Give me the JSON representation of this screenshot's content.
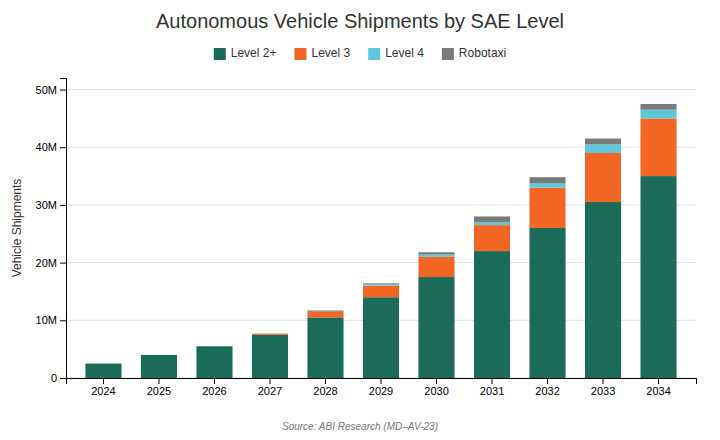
{
  "chart_data": {
    "type": "bar",
    "stacked": true,
    "title": "Autonomous Vehicle Shipments by SAE Level",
    "ylabel": "Vehicle Shipments",
    "annotations": [
      "Source: ABI Research (MD–AV-23)"
    ],
    "categories": [
      "2024",
      "2025",
      "2026",
      "2027",
      "2028",
      "2029",
      "2030",
      "2031",
      "2032",
      "2033",
      "2034"
    ],
    "series": [
      {
        "name": "Level 2+",
        "color": "#1a6b5a",
        "values": [
          2.5,
          4.0,
          5.5,
          7.5,
          10.5,
          14.0,
          17.5,
          22.0,
          26.0,
          30.5,
          35.0
        ]
      },
      {
        "name": "Level 3",
        "color": "#f26522",
        "values": [
          0.0,
          0.0,
          0.0,
          0.2,
          1.0,
          2.0,
          3.5,
          4.5,
          7.0,
          8.5,
          10.0
        ]
      },
      {
        "name": "Level 4",
        "color": "#5ec8d8",
        "values": [
          0.0,
          0.0,
          0.0,
          0.0,
          0.0,
          0.2,
          0.4,
          0.5,
          0.8,
          1.5,
          1.5
        ]
      },
      {
        "name": "Robotaxi",
        "color": "#7a7a7a",
        "values": [
          0.0,
          0.0,
          0.0,
          0.0,
          0.2,
          0.2,
          0.4,
          1.0,
          1.0,
          1.0,
          1.0
        ]
      }
    ],
    "ylim": [
      0,
      52
    ],
    "yticks": [
      0,
      {
        "value": 10,
        "label": "10M"
      },
      {
        "value": 20,
        "label": "20M"
      },
      {
        "value": 30,
        "label": "30M"
      },
      {
        "value": 40,
        "label": "40M"
      },
      {
        "value": 50,
        "label": "50M"
      }
    ],
    "grid": true,
    "legend": "top"
  }
}
